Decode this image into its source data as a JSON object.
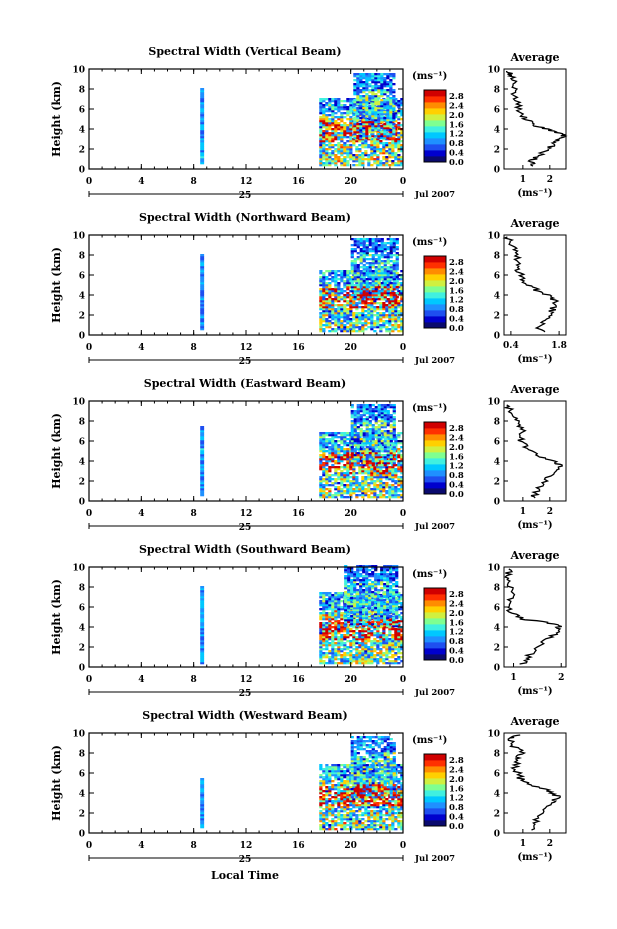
{
  "figure": {
    "xlabel": "Local Time",
    "date_label": "Jul 2007",
    "day_label": "25",
    "unit_label": "(ms⁻¹)",
    "avg_title": "Average",
    "avg_xlabel": "(ms⁻¹)"
  },
  "colorbar": {
    "ticks": [
      "2.8",
      "2.4",
      "2.0",
      "1.6",
      "1.2",
      "0.8",
      "0.4",
      "0.0"
    ],
    "colors": [
      "#0a0a6e",
      "#0000cd",
      "#1e4ff0",
      "#1f90ff",
      "#00c8ff",
      "#40f0e0",
      "#7fff90",
      "#d0f040",
      "#ffd000",
      "#ff8c00",
      "#ff3000",
      "#d00000"
    ]
  },
  "chart_data": [
    {
      "type": "heatmap",
      "title": "Spectral Width (Vertical Beam)",
      "xlabel": "Local Time",
      "ylabel": "Height (km)",
      "xlim": [
        0,
        24
      ],
      "ylim": [
        0,
        10
      ],
      "xticks": [
        "0",
        "4",
        "8",
        "12",
        "16",
        "20",
        "0"
      ],
      "yticks": [
        "0",
        "2",
        "4",
        "6",
        "8",
        "10"
      ],
      "colorbar_range": [
        0,
        3.0
      ],
      "data_blocks": [
        {
          "x0": 8.5,
          "x1": 8.8,
          "y0": 0.5,
          "y1": 8.0,
          "value": 0.9
        },
        {
          "x0": 17.6,
          "x1": 24,
          "y0": 0.3,
          "y1": 7.0,
          "value": 1.5
        },
        {
          "x0": 20.2,
          "x1": 23.2,
          "y0": 3.0,
          "y1": 9.5,
          "value": 1.2
        }
      ],
      "avg": {
        "xlim": [
          0.3,
          2.6
        ],
        "xticks": [
          "1",
          "2"
        ],
        "profile": [
          [
            1.4,
            0.3
          ],
          [
            1.3,
            0.8
          ],
          [
            1.5,
            1.2
          ],
          [
            1.9,
            2.0
          ],
          [
            2.2,
            2.6
          ],
          [
            2.4,
            3.0
          ],
          [
            2.5,
            3.4
          ],
          [
            2.1,
            3.8
          ],
          [
            1.6,
            4.2
          ],
          [
            1.2,
            4.8
          ],
          [
            0.9,
            5.5
          ],
          [
            0.8,
            6.5
          ],
          [
            0.7,
            7.5
          ],
          [
            0.7,
            8.5
          ],
          [
            0.6,
            9.3
          ],
          [
            0.4,
            9.8
          ]
        ]
      }
    },
    {
      "type": "heatmap",
      "title": "Spectral Width (Northward Beam)",
      "xlabel": "Local Time",
      "ylabel": "Height (km)",
      "xlim": [
        0,
        24
      ],
      "ylim": [
        0,
        10
      ],
      "xticks": [
        "0",
        "4",
        "8",
        "12",
        "16",
        "20",
        "0"
      ],
      "yticks": [
        "0",
        "2",
        "4",
        "6",
        "8",
        "10"
      ],
      "colorbar_range": [
        0,
        3.0
      ],
      "data_blocks": [
        {
          "x0": 8.5,
          "x1": 8.8,
          "y0": 0.5,
          "y1": 8.0,
          "value": 0.9
        },
        {
          "x0": 17.6,
          "x1": 24,
          "y0": 0.3,
          "y1": 6.5,
          "value": 1.4
        },
        {
          "x0": 20.0,
          "x1": 23.5,
          "y0": 3.5,
          "y1": 9.5,
          "value": 1.1
        }
      ],
      "avg": {
        "xlim": [
          0.2,
          2.0
        ],
        "xticks": [
          "0.4",
          "1.8"
        ],
        "profile": [
          [
            1.3,
            0.3
          ],
          [
            1.2,
            0.9
          ],
          [
            1.4,
            1.6
          ],
          [
            1.6,
            2.4
          ],
          [
            1.7,
            3.2
          ],
          [
            1.6,
            3.8
          ],
          [
            1.2,
            4.4
          ],
          [
            0.9,
            5.0
          ],
          [
            0.7,
            5.8
          ],
          [
            0.6,
            6.6
          ],
          [
            0.6,
            7.4
          ],
          [
            0.5,
            8.4
          ],
          [
            0.4,
            9.2
          ],
          [
            0.3,
            9.8
          ]
        ]
      }
    },
    {
      "type": "heatmap",
      "title": "Spectral Width (Eastward Beam)",
      "xlabel": "Local Time",
      "ylabel": "Height (km)",
      "xlim": [
        0,
        24
      ],
      "ylim": [
        0,
        10
      ],
      "xticks": [
        "0",
        "4",
        "8",
        "12",
        "16",
        "20",
        "0"
      ],
      "yticks": [
        "0",
        "2",
        "4",
        "6",
        "8",
        "10"
      ],
      "colorbar_range": [
        0,
        3.0
      ],
      "data_blocks": [
        {
          "x0": 8.5,
          "x1": 8.8,
          "y0": 0.5,
          "y1": 7.5,
          "value": 0.9
        },
        {
          "x0": 17.6,
          "x1": 24,
          "y0": 0.3,
          "y1": 6.8,
          "value": 1.5
        },
        {
          "x0": 20.0,
          "x1": 23.3,
          "y0": 3.5,
          "y1": 9.5,
          "value": 1.2
        }
      ],
      "avg": {
        "xlim": [
          0.3,
          2.6
        ],
        "xticks": [
          "1",
          "2"
        ],
        "profile": [
          [
            1.4,
            0.3
          ],
          [
            1.5,
            1.0
          ],
          [
            1.8,
            2.0
          ],
          [
            2.2,
            3.0
          ],
          [
            2.4,
            3.6
          ],
          [
            2.1,
            4.0
          ],
          [
            1.5,
            4.6
          ],
          [
            1.1,
            5.4
          ],
          [
            0.9,
            6.2
          ],
          [
            1.0,
            7.2
          ],
          [
            0.8,
            8.0
          ],
          [
            0.6,
            8.8
          ],
          [
            0.4,
            9.6
          ]
        ]
      }
    },
    {
      "type": "heatmap",
      "title": "Spectral Width (Southward Beam)",
      "xlabel": "Local Time",
      "ylabel": "Height (km)",
      "xlim": [
        0,
        24
      ],
      "ylim": [
        0,
        10
      ],
      "xticks": [
        "0",
        "4",
        "8",
        "12",
        "16",
        "20",
        "0"
      ],
      "yticks": [
        "0",
        "2",
        "4",
        "6",
        "8",
        "10"
      ],
      "colorbar_range": [
        0,
        3.0
      ],
      "data_blocks": [
        {
          "x0": 8.5,
          "x1": 8.8,
          "y0": 0.3,
          "y1": 8.0,
          "value": 0.9
        },
        {
          "x0": 17.6,
          "x1": 24,
          "y0": 0.3,
          "y1": 7.5,
          "value": 1.5
        },
        {
          "x0": 19.5,
          "x1": 23.5,
          "y0": 4.0,
          "y1": 10.0,
          "value": 1.1
        }
      ],
      "avg": {
        "xlim": [
          0.8,
          2.1
        ],
        "xticks": [
          "1",
          "2"
        ],
        "profile": [
          [
            1.2,
            0.3
          ],
          [
            1.3,
            1.0
          ],
          [
            1.5,
            2.0
          ],
          [
            1.8,
            3.0
          ],
          [
            2.0,
            3.8
          ],
          [
            1.9,
            4.3
          ],
          [
            1.2,
            4.8
          ],
          [
            0.9,
            5.5
          ],
          [
            0.9,
            6.4
          ],
          [
            1.0,
            7.4
          ],
          [
            0.9,
            8.2
          ],
          [
            0.9,
            9.0
          ],
          [
            0.9,
            9.8
          ]
        ]
      }
    },
    {
      "type": "heatmap",
      "title": "Spectral Width (Westward Beam)",
      "xlabel": "Local Time",
      "ylabel": "Height (km)",
      "xlim": [
        0,
        24
      ],
      "ylim": [
        0,
        10
      ],
      "xticks": [
        "0",
        "4",
        "8",
        "12",
        "16",
        "20",
        "0"
      ],
      "yticks": [
        "0",
        "2",
        "4",
        "6",
        "8",
        "10"
      ],
      "colorbar_range": [
        0,
        3.0
      ],
      "data_blocks": [
        {
          "x0": 8.5,
          "x1": 8.8,
          "y0": 0.5,
          "y1": 5.5,
          "value": 0.9
        },
        {
          "x0": 17.6,
          "x1": 24,
          "y0": 0.3,
          "y1": 6.8,
          "value": 1.5
        },
        {
          "x0": 20.0,
          "x1": 23.3,
          "y0": 3.5,
          "y1": 9.5,
          "value": 1.2
        }
      ],
      "avg": {
        "xlim": [
          0.3,
          2.6
        ],
        "xticks": [
          "1",
          "2"
        ],
        "profile": [
          [
            1.3,
            0.3
          ],
          [
            1.4,
            1.0
          ],
          [
            1.7,
            2.0
          ],
          [
            2.1,
            3.0
          ],
          [
            2.3,
            3.6
          ],
          [
            2.0,
            4.2
          ],
          [
            1.3,
            4.8
          ],
          [
            0.9,
            5.5
          ],
          [
            0.7,
            6.5
          ],
          [
            0.8,
            7.4
          ],
          [
            1.0,
            8.0
          ],
          [
            0.6,
            8.8
          ],
          [
            0.5,
            9.5
          ],
          [
            0.9,
            9.8
          ]
        ]
      }
    }
  ]
}
